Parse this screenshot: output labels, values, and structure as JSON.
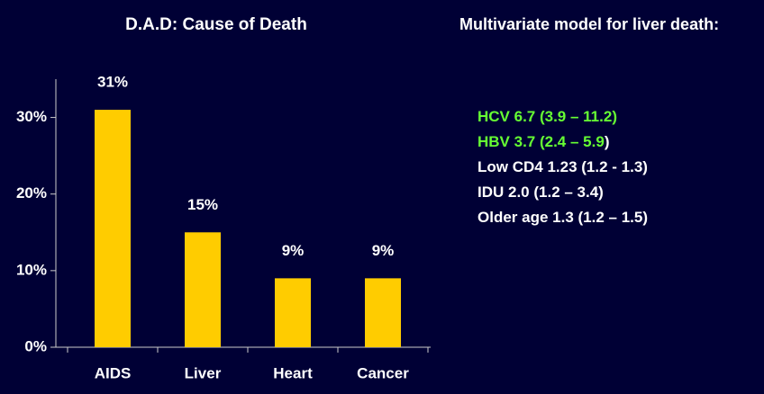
{
  "chart_data": {
    "type": "bar",
    "title": "D.A.D: Cause of Death",
    "categories": [
      "AIDS",
      "Liver",
      "Heart",
      "Cancer"
    ],
    "values": [
      31,
      15,
      9,
      9
    ],
    "value_labels": [
      "31%",
      "15%",
      "9%",
      "9%"
    ],
    "color": "#ffcc00",
    "ylim": [
      0,
      35
    ],
    "yticks": [
      {
        "value": 0,
        "label": "0%"
      },
      {
        "value": 10,
        "label": "10%"
      },
      {
        "value": 20,
        "label": "20%"
      },
      {
        "value": 30,
        "label": "30%"
      }
    ],
    "grid": false
  },
  "panel": {
    "heading": "Multivariate model for liver death:",
    "lines": [
      {
        "parts": [
          {
            "text": "HCV 6.7 (3.9 – 11.2)",
            "color": "#66ff33"
          }
        ]
      },
      {
        "parts": [
          {
            "text": "HBV 3.7 (2.4 – 5.9",
            "color": "#66ff33"
          },
          {
            "text": ")",
            "color": "#ffffff"
          }
        ]
      },
      {
        "parts": [
          {
            "text": "Low CD4 1.23 (1.2 - 1.3)",
            "color": "#ffffff"
          }
        ]
      },
      {
        "parts": [
          {
            "text": "IDU 2.0 (1.2 – 3.4)",
            "color": "#ffffff"
          }
        ]
      },
      {
        "parts": [
          {
            "text": "Older age 1.3 (1.2 – 1.5)",
            "color": "#ffffff"
          }
        ]
      }
    ]
  }
}
